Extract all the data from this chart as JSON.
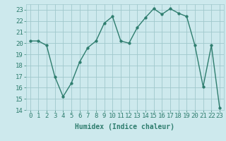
{
  "x": [
    0,
    1,
    2,
    3,
    4,
    5,
    6,
    7,
    8,
    9,
    10,
    11,
    12,
    13,
    14,
    15,
    16,
    17,
    18,
    19,
    20,
    21,
    22,
    23
  ],
  "y": [
    20.2,
    20.2,
    19.8,
    17.0,
    15.2,
    16.4,
    18.3,
    19.6,
    20.2,
    21.8,
    22.4,
    20.2,
    20.0,
    21.4,
    22.3,
    23.1,
    22.6,
    23.1,
    22.7,
    22.4,
    19.8,
    16.1,
    19.8,
    14.2
  ],
  "line_color": "#2e7d6e",
  "marker": "o",
  "marker_size": 2.5,
  "bg_color": "#cde9ed",
  "grid_color": "#a0c8cc",
  "xlabel": "Humidex (Indice chaleur)",
  "ylim": [
    14,
    23.5
  ],
  "yticks": [
    14,
    15,
    16,
    17,
    18,
    19,
    20,
    21,
    22,
    23
  ],
  "xticks": [
    0,
    1,
    2,
    3,
    4,
    5,
    6,
    7,
    8,
    9,
    10,
    11,
    12,
    13,
    14,
    15,
    16,
    17,
    18,
    19,
    20,
    21,
    22,
    23
  ],
  "xlabel_fontsize": 7,
  "tick_fontsize": 6.5,
  "line_width": 1.0
}
